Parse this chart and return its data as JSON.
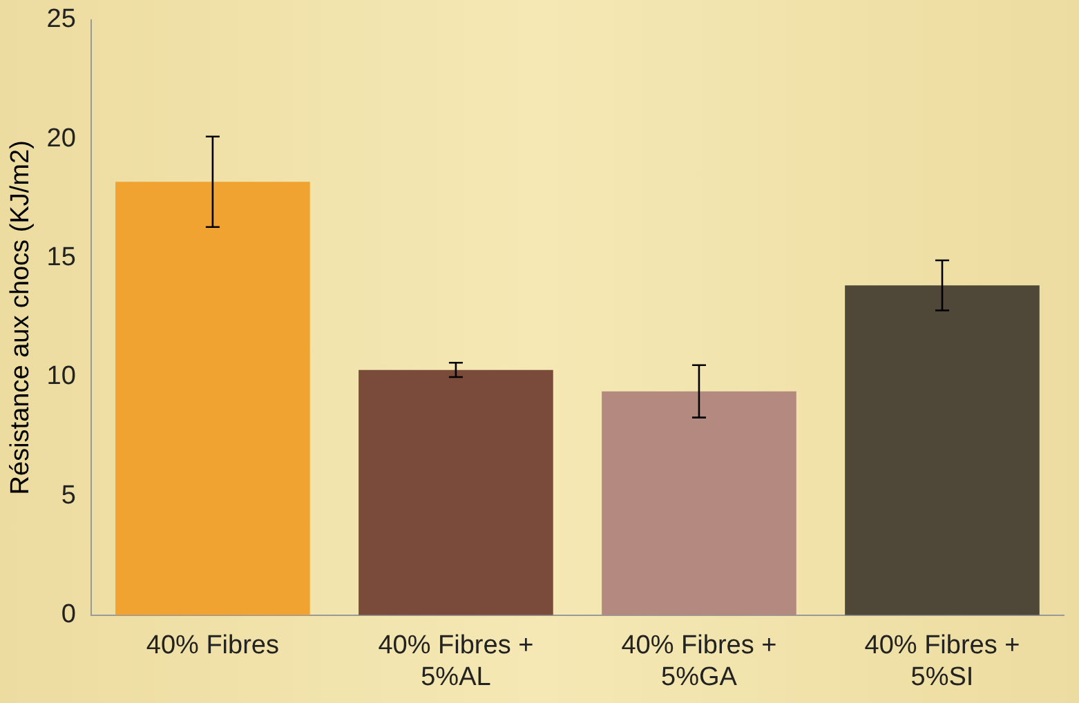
{
  "chart_data": {
    "type": "bar",
    "ylabel": "Résistance aux chocs (KJ/m2)",
    "categories": [
      "40% Fibres",
      "40% Fibres +\n5%AL",
      "40% Fibres +\n5%GA",
      "40% Fibres +\n5%SI"
    ],
    "values": [
      18.2,
      10.3,
      9.4,
      13.85
    ],
    "colors": [
      "#f0a330",
      "#7a4a3a",
      "#b48a80",
      "#4f4838"
    ],
    "errors": [
      1.9,
      0.3,
      1.1,
      1.05
    ],
    "ylim": [
      0,
      25
    ],
    "yticks": [
      0,
      5,
      10,
      15,
      20,
      25
    ],
    "grid": false,
    "legend": false
  }
}
